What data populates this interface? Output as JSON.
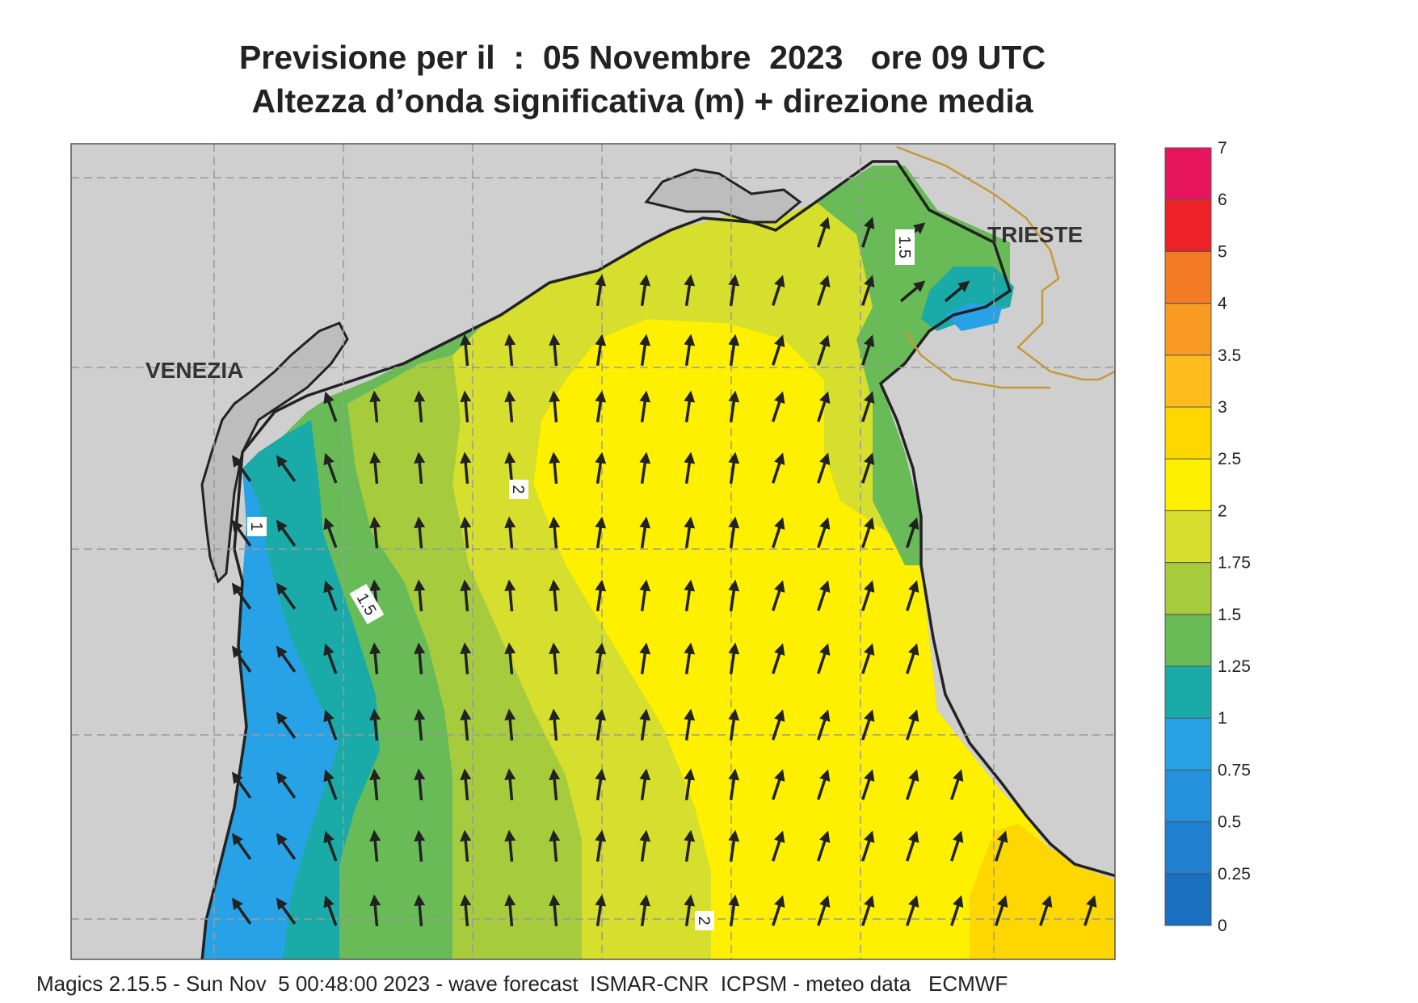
{
  "title": {
    "line1": "Previsione per il  :  05 Novembre  2023   ore 09 UTC",
    "line2": "Altezza d’onda significativa (m) + direzione media"
  },
  "places": [
    {
      "name": "VENEZIA"
    },
    {
      "name": "TRIESTE"
    }
  ],
  "contour_labels": [
    "1.5",
    "2",
    "1",
    "1.5",
    "2"
  ],
  "colorbar": {
    "levels": [
      "0",
      "0.25",
      "0.5",
      "0.75",
      "1",
      "1.25",
      "1.5",
      "1.75",
      "2",
      "2.5",
      "3",
      "3.5",
      "4",
      "5",
      "6",
      "7"
    ],
    "colors": [
      "#1a6fc0",
      "#1f80cf",
      "#2491dc",
      "#27a2e6",
      "#1aaaa7",
      "#68bb56",
      "#a6cc3e",
      "#d6df2d",
      "#fff000",
      "#ffd700",
      "#ffbc1c",
      "#f99a23",
      "#f47b25",
      "#ed2226",
      "#e7165c"
    ]
  },
  "footer": "Magics 2.15.5 - Sun Nov  5 00:48:00 2023 - wave forecast  ISMAR-CNR  ICPSM - meteo data   ECMWF",
  "colors": {
    "land": "#cfcfcf",
    "coast": "#222222",
    "border": "#c49a3a",
    "grid": "#9a9a9a",
    "arrow": "#222222"
  }
}
